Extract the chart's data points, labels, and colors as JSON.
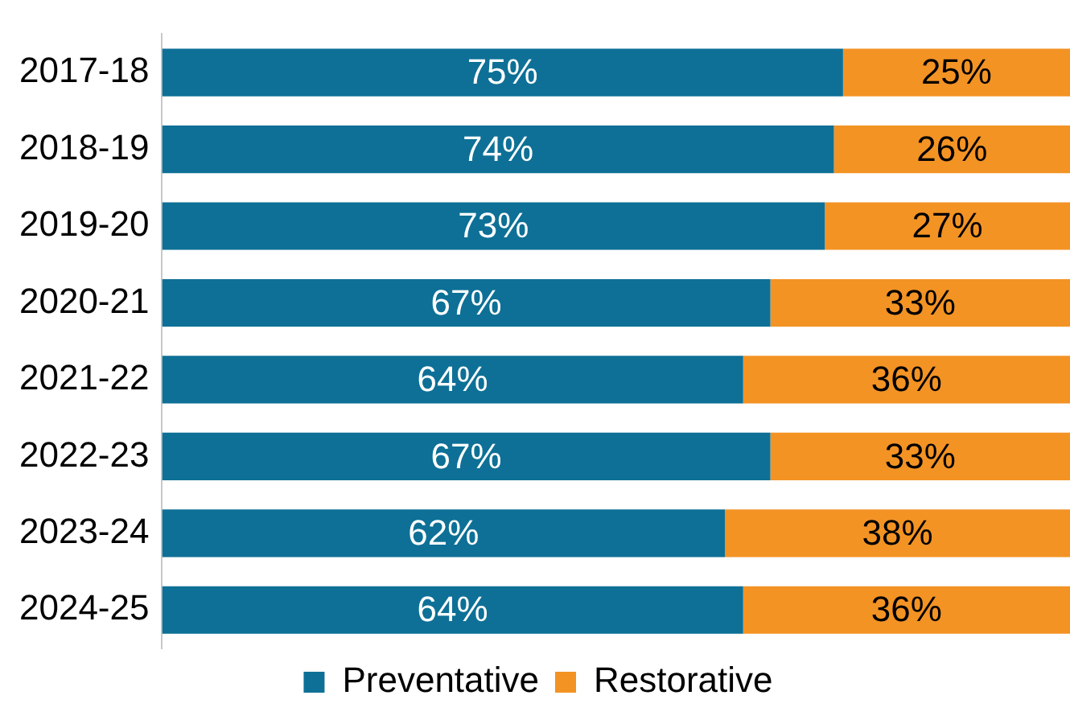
{
  "chart_data": {
    "type": "bar",
    "orientation": "horizontal",
    "stacked": true,
    "categories": [
      "2017-18",
      "2018-19",
      "2019-20",
      "2020-21",
      "2021-22",
      "2022-23",
      "2023-24",
      "2024-25"
    ],
    "series": [
      {
        "name": "Preventative",
        "color": "#0e7096",
        "values": [
          75,
          74,
          73,
          67,
          64,
          67,
          62,
          64
        ],
        "value_labels": [
          "75%",
          "74%",
          "73%",
          "67%",
          "64%",
          "67%",
          "62%",
          "64%"
        ]
      },
      {
        "name": "Restorative",
        "color": "#f39324",
        "values": [
          25,
          26,
          27,
          33,
          36,
          33,
          38,
          36
        ],
        "value_labels": [
          "25%",
          "26%",
          "27%",
          "33%",
          "36%",
          "33%",
          "38%",
          "36%"
        ]
      }
    ],
    "xlim": [
      0,
      100
    ],
    "tick_labels": "y",
    "legend": "bottom"
  }
}
